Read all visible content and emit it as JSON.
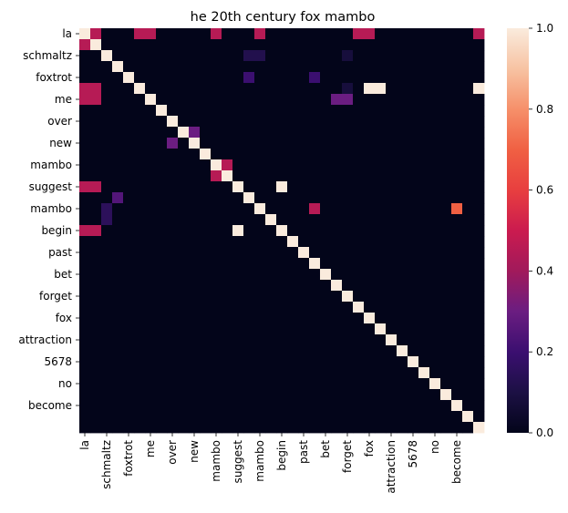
{
  "chart_data": {
    "type": "heatmap",
    "title": "he 20th century fox mambo",
    "xlabel": "",
    "ylabel": "",
    "tokens": [
      "la",
      "la",
      "schmaltz",
      "schmaltz",
      "foxtrot",
      "foxtrot",
      "me",
      "me",
      "over",
      "over",
      "new",
      "new",
      "mambo",
      "mambo",
      "suggest",
      "suggest",
      "mambo",
      "mambo",
      "begin",
      "begin",
      "past",
      "past",
      "bet",
      "bet",
      "forget",
      "forget",
      "fox",
      "fox",
      "attraction",
      "attraction",
      "5678",
      "5678",
      "no",
      "no",
      "become",
      "become",
      "la"
    ],
    "x_tick_labels": [
      "la",
      "schmaltz",
      "foxtrot",
      "me",
      "over",
      "new",
      "mambo",
      "suggest",
      "mambo",
      "begin",
      "past",
      "bet",
      "forget",
      "fox",
      "attraction",
      "5678",
      "no",
      "become"
    ],
    "y_tick_labels": [
      "la",
      "schmaltz",
      "foxtrot",
      "me",
      "over",
      "new",
      "mambo",
      "suggest",
      "mambo",
      "begin",
      "past",
      "bet",
      "forget",
      "fox",
      "attraction",
      "5678",
      "no",
      "become"
    ],
    "colorbar": {
      "min": 0.0,
      "max": 1.0,
      "ticks": [
        "0.0",
        "0.2",
        "0.4",
        "0.6",
        "0.8",
        "1.0"
      ]
    },
    "grid": false,
    "values": [
      [
        1,
        0.45,
        0,
        0,
        0,
        0.45,
        0.45,
        0,
        0,
        0,
        0,
        0,
        0.45,
        0,
        0,
        0,
        0.45,
        0,
        0,
        0,
        0,
        0,
        0,
        0,
        0,
        0.45,
        0.45,
        0,
        0,
        0,
        0,
        0,
        0,
        0,
        0,
        0,
        0.45
      ],
      [
        0.45,
        1,
        0,
        0,
        0,
        0,
        0,
        0,
        0,
        0,
        0,
        0,
        0,
        0,
        0,
        0,
        0,
        0,
        0,
        0,
        0,
        0,
        0,
        0,
        0,
        0,
        0,
        0,
        0,
        0,
        0,
        0,
        0,
        0,
        0,
        0,
        0
      ],
      [
        0,
        0,
        1,
        0,
        0,
        0,
        0,
        0,
        0,
        0,
        0,
        0,
        0,
        0,
        0,
        0.12,
        0.12,
        0,
        0,
        0,
        0,
        0,
        0,
        0,
        0.08,
        0,
        0,
        0,
        0,
        0,
        0,
        0,
        0,
        0,
        0,
        0,
        0
      ],
      [
        0,
        0,
        0,
        1,
        0,
        0,
        0,
        0,
        0,
        0,
        0,
        0,
        0,
        0,
        0,
        0,
        0,
        0,
        0,
        0,
        0,
        0,
        0,
        0,
        0,
        0,
        0,
        0,
        0,
        0,
        0,
        0,
        0,
        0,
        0,
        0,
        0
      ],
      [
        0,
        0,
        0,
        0,
        1,
        0,
        0,
        0,
        0,
        0,
        0,
        0,
        0,
        0,
        0,
        0.2,
        0,
        0,
        0,
        0,
        0,
        0.2,
        0,
        0,
        0,
        0,
        0,
        0,
        0,
        0,
        0,
        0,
        0,
        0,
        0,
        0,
        0
      ],
      [
        0.45,
        0.45,
        0,
        0,
        0,
        1,
        0,
        0,
        0,
        0,
        0,
        0,
        0,
        0,
        0,
        0,
        0,
        0,
        0,
        0,
        0,
        0,
        0,
        0,
        0.08,
        0,
        1,
        1,
        0,
        0,
        0,
        0,
        0,
        0,
        0,
        0,
        1
      ],
      [
        0.45,
        0.45,
        0,
        0,
        0,
        0,
        1,
        0,
        0,
        0,
        0,
        0,
        0,
        0,
        0,
        0,
        0,
        0,
        0,
        0,
        0,
        0,
        0,
        0.3,
        0.3,
        0,
        0,
        0,
        0,
        0,
        0,
        0,
        0,
        0,
        0,
        0,
        0
      ],
      [
        0,
        0,
        0,
        0,
        0,
        0,
        0,
        1,
        0,
        0,
        0,
        0,
        0,
        0,
        0,
        0,
        0,
        0,
        0,
        0,
        0,
        0,
        0,
        0,
        0,
        0,
        0,
        0,
        0,
        0,
        0,
        0,
        0,
        0,
        0,
        0,
        0
      ],
      [
        0,
        0,
        0,
        0,
        0,
        0,
        0,
        0,
        1,
        0,
        0,
        0,
        0,
        0,
        0,
        0,
        0,
        0,
        0,
        0,
        0,
        0,
        0,
        0,
        0,
        0,
        0,
        0,
        0,
        0,
        0,
        0,
        0,
        0,
        0,
        0,
        0
      ],
      [
        0,
        0,
        0,
        0,
        0,
        0,
        0,
        0,
        0,
        1,
        0.3,
        0,
        0,
        0,
        0,
        0,
        0,
        0,
        0,
        0,
        0,
        0,
        0,
        0,
        0,
        0,
        0,
        0,
        0,
        0,
        0,
        0,
        0,
        0,
        0,
        0,
        0
      ],
      [
        0,
        0,
        0,
        0,
        0,
        0,
        0,
        0,
        0.3,
        0,
        1,
        0,
        0,
        0,
        0,
        0,
        0,
        0,
        0,
        0,
        0,
        0,
        0,
        0,
        0,
        0,
        0,
        0,
        0,
        0,
        0,
        0,
        0,
        0,
        0,
        0,
        0
      ],
      [
        0,
        0,
        0,
        0,
        0,
        0,
        0,
        0,
        0,
        0,
        0,
        1,
        0,
        0,
        0,
        0,
        0,
        0,
        0,
        0,
        0,
        0,
        0,
        0,
        0,
        0,
        0,
        0,
        0,
        0,
        0,
        0,
        0,
        0,
        0,
        0,
        0
      ],
      [
        0,
        0,
        0,
        0,
        0,
        0,
        0,
        0,
        0,
        0,
        0,
        0,
        1,
        0.45,
        0,
        0,
        0,
        0,
        0,
        0,
        0,
        0,
        0,
        0,
        0,
        0,
        0,
        0,
        0,
        0,
        0,
        0,
        0,
        0,
        0,
        0,
        0
      ],
      [
        0,
        0,
        0,
        0,
        0,
        0,
        0,
        0,
        0,
        0,
        0,
        0,
        0.45,
        1,
        0,
        0,
        0,
        0,
        0,
        0,
        0,
        0,
        0,
        0,
        0,
        0,
        0,
        0,
        0,
        0,
        0,
        0,
        0,
        0,
        0,
        0,
        0
      ],
      [
        0.45,
        0.45,
        0,
        0,
        0,
        0,
        0,
        0,
        0,
        0,
        0,
        0,
        0,
        0,
        1,
        0,
        0,
        0,
        1,
        0,
        0,
        0,
        0,
        0,
        0,
        0,
        0,
        0,
        0,
        0,
        0,
        0,
        0,
        0,
        0,
        0,
        0
      ],
      [
        0,
        0,
        0,
        0.25,
        0,
        0,
        0,
        0,
        0,
        0,
        0,
        0,
        0,
        0,
        0,
        1,
        0,
        0,
        0,
        0,
        0,
        0,
        0,
        0,
        0,
        0,
        0,
        0,
        0,
        0,
        0,
        0,
        0,
        0,
        0,
        0,
        0
      ],
      [
        0,
        0,
        0.15,
        0,
        0,
        0,
        0,
        0,
        0,
        0,
        0,
        0,
        0,
        0,
        0,
        0,
        1,
        0,
        0,
        0,
        0,
        0.45,
        0,
        0,
        0,
        0,
        0,
        0,
        0,
        0,
        0,
        0,
        0,
        0,
        0.7,
        0,
        0
      ],
      [
        0,
        0,
        0.15,
        0,
        0,
        0,
        0,
        0,
        0,
        0,
        0,
        0,
        0,
        0,
        0,
        0,
        0,
        1,
        0,
        0,
        0,
        0,
        0,
        0,
        0,
        0,
        0,
        0,
        0,
        0,
        0,
        0,
        0,
        0,
        0,
        0,
        0
      ],
      [
        0.45,
        0.45,
        0,
        0,
        0,
        0,
        0,
        0,
        0,
        0,
        0,
        0,
        0,
        0,
        1,
        0,
        0,
        0,
        1,
        0,
        0,
        0,
        0,
        0,
        0,
        0,
        0,
        0,
        0,
        0,
        0,
        0,
        0,
        0,
        0,
        0,
        0
      ],
      [
        0,
        0,
        0,
        0,
        0,
        0,
        0,
        0,
        0,
        0,
        0,
        0,
        0,
        0,
        0,
        0,
        0,
        0,
        0,
        1,
        0,
        0,
        0,
        0,
        0,
        0,
        0,
        0,
        0,
        0,
        0,
        0,
        0,
        0,
        0,
        0,
        0
      ],
      [
        0,
        0,
        0,
        0,
        0,
        0,
        0,
        0,
        0,
        0,
        0,
        0,
        0,
        0,
        0,
        0,
        0,
        0,
        0,
        0,
        1,
        0,
        0,
        0,
        0,
        0,
        0,
        0,
        0,
        0,
        0,
        0,
        0,
        0,
        0,
        0,
        0
      ],
      [
        0,
        0,
        0,
        0,
        0,
        0,
        0,
        0,
        0,
        0,
        0,
        0,
        0,
        0,
        0,
        0,
        0,
        0,
        0,
        0,
        0,
        1,
        0,
        0,
        0,
        0,
        0,
        0,
        0,
        0,
        0,
        0,
        0,
        0,
        0,
        0,
        0
      ],
      [
        0,
        0,
        0,
        0,
        0,
        0,
        0,
        0,
        0,
        0,
        0,
        0,
        0,
        0,
        0,
        0,
        0,
        0,
        0,
        0,
        0,
        0,
        1,
        0,
        0,
        0,
        0,
        0,
        0,
        0,
        0,
        0,
        0,
        0,
        0,
        0,
        0
      ],
      [
        0,
        0,
        0,
        0,
        0,
        0,
        0,
        0,
        0,
        0,
        0,
        0,
        0,
        0,
        0,
        0,
        0,
        0,
        0,
        0,
        0,
        0,
        0,
        1,
        0,
        0,
        0,
        0,
        0,
        0,
        0,
        0,
        0,
        0,
        0,
        0,
        0
      ],
      [
        0,
        0,
        0,
        0,
        0,
        0,
        0,
        0,
        0,
        0,
        0,
        0,
        0,
        0,
        0,
        0,
        0,
        0,
        0,
        0,
        0,
        0,
        0,
        0,
        1,
        0,
        0,
        0,
        0,
        0,
        0,
        0,
        0,
        0,
        0,
        0,
        0
      ],
      [
        0,
        0,
        0,
        0,
        0,
        0,
        0,
        0,
        0,
        0,
        0,
        0,
        0,
        0,
        0,
        0,
        0,
        0,
        0,
        0,
        0,
        0,
        0,
        0,
        0,
        1,
        0,
        0,
        0,
        0,
        0,
        0,
        0,
        0,
        0,
        0,
        0
      ],
      [
        0,
        0,
        0,
        0,
        0,
        0,
        0,
        0,
        0,
        0,
        0,
        0,
        0,
        0,
        0,
        0,
        0,
        0,
        0,
        0,
        0,
        0,
        0,
        0,
        0,
        0,
        1,
        0,
        0,
        0,
        0,
        0,
        0,
        0,
        0,
        0,
        0
      ],
      [
        0,
        0,
        0,
        0,
        0,
        0,
        0,
        0,
        0,
        0,
        0,
        0,
        0,
        0,
        0,
        0,
        0,
        0,
        0,
        0,
        0,
        0,
        0,
        0,
        0,
        0,
        0,
        1,
        0,
        0,
        0,
        0,
        0,
        0,
        0,
        0,
        0
      ],
      [
        0,
        0,
        0,
        0,
        0,
        0,
        0,
        0,
        0,
        0,
        0,
        0,
        0,
        0,
        0,
        0,
        0,
        0,
        0,
        0,
        0,
        0,
        0,
        0,
        0,
        0,
        0,
        0,
        1,
        0,
        0,
        0,
        0,
        0,
        0,
        0,
        0
      ],
      [
        0,
        0,
        0,
        0,
        0,
        0,
        0,
        0,
        0,
        0,
        0,
        0,
        0,
        0,
        0,
        0,
        0,
        0,
        0,
        0,
        0,
        0,
        0,
        0,
        0,
        0,
        0,
        0,
        0,
        1,
        0,
        0,
        0,
        0,
        0,
        0,
        0
      ],
      [
        0,
        0,
        0,
        0,
        0,
        0,
        0,
        0,
        0,
        0,
        0,
        0,
        0,
        0,
        0,
        0,
        0,
        0,
        0,
        0,
        0,
        0,
        0,
        0,
        0,
        0,
        0,
        0,
        0,
        0,
        1,
        0,
        0,
        0,
        0,
        0,
        0
      ],
      [
        0,
        0,
        0,
        0,
        0,
        0,
        0,
        0,
        0,
        0,
        0,
        0,
        0,
        0,
        0,
        0,
        0,
        0,
        0,
        0,
        0,
        0,
        0,
        0,
        0,
        0,
        0,
        0,
        0,
        0,
        0,
        1,
        0,
        0,
        0,
        0,
        0
      ],
      [
        0,
        0,
        0,
        0,
        0,
        0,
        0,
        0,
        0,
        0,
        0,
        0,
        0,
        0,
        0,
        0,
        0,
        0,
        0,
        0,
        0,
        0,
        0,
        0,
        0,
        0,
        0,
        0,
        0,
        0,
        0,
        0,
        1,
        0,
        0,
        0,
        0
      ],
      [
        0,
        0,
        0,
        0,
        0,
        0,
        0,
        0,
        0,
        0,
        0,
        0,
        0,
        0,
        0,
        0,
        0,
        0,
        0,
        0,
        0,
        0,
        0,
        0,
        0,
        0,
        0,
        0,
        0,
        0,
        0,
        0,
        0,
        1,
        0,
        0,
        0
      ],
      [
        0,
        0,
        0,
        0,
        0,
        0,
        0,
        0,
        0,
        0,
        0,
        0,
        0,
        0,
        0,
        0,
        0,
        0,
        0,
        0,
        0,
        0,
        0,
        0,
        0,
        0,
        0,
        0,
        0,
        0,
        0,
        0,
        0,
        0,
        1,
        0,
        0
      ],
      [
        0,
        0,
        0,
        0,
        0,
        0,
        0,
        0,
        0,
        0,
        0,
        0,
        0,
        0,
        0,
        0,
        0,
        0,
        0,
        0,
        0,
        0,
        0,
        0,
        0,
        0,
        0,
        0,
        0,
        0,
        0,
        0,
        0,
        0,
        0,
        1,
        0
      ],
      [
        0,
        0,
        0,
        0,
        0,
        0,
        0,
        0,
        0,
        0,
        0,
        0,
        0,
        0,
        0,
        0,
        0,
        0,
        0,
        0,
        0,
        0,
        0,
        0,
        0,
        0,
        0,
        0,
        0,
        0,
        0,
        0,
        0,
        0,
        0,
        0,
        1
      ]
    ]
  }
}
